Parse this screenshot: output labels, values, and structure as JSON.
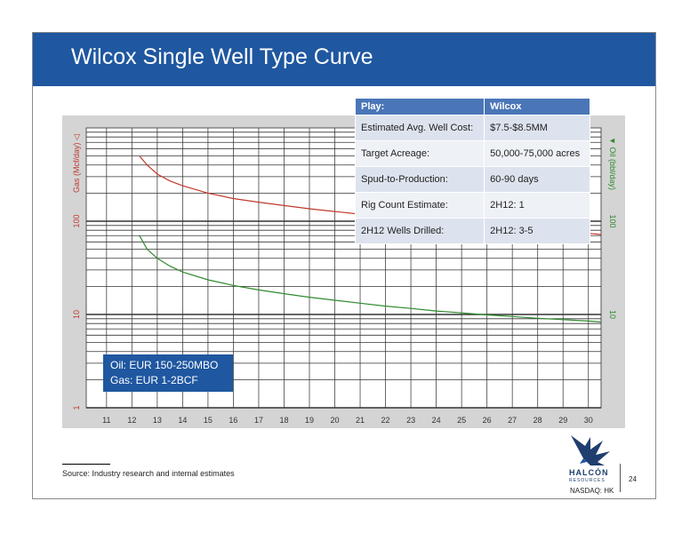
{
  "slide": {
    "title": "Wilcox Single Well Type Curve",
    "source": "Source: Industry research and internal estimates",
    "page_number": "24",
    "ticker": "NASDAQ: HK",
    "company_name": "HALCÓN",
    "company_sub": "RESOURCES",
    "colors": {
      "banner": "#1f57a0",
      "table_header": "#4a76b8",
      "gas_curve": "#c0392b",
      "oil_curve": "#2e8b2e"
    }
  },
  "info_table": {
    "header": [
      "Play:",
      "Wilcox"
    ],
    "rows": [
      [
        "Estimated Avg. Well Cost:",
        "$7.5-$8.5MM"
      ],
      [
        "Target Acreage:",
        "50,000-75,000 acres"
      ],
      [
        "Spud-to-Production:",
        "60-90 days"
      ],
      [
        "Rig Count Estimate:",
        "2H12: 1"
      ],
      [
        "2H12 Wells Drilled:",
        "2H12: 3-5"
      ]
    ]
  },
  "eur_box": [
    "Oil: EUR 150-250MBO",
    "Gas: EUR 1-2BCF"
  ],
  "chart_data": {
    "type": "line",
    "ylabel_left": "Gas (Mcf/day) ◁",
    "ylabel_right": "▼ Oil (bbl/day)",
    "xlim": [
      10.2,
      30.5
    ],
    "ylim": [
      1,
      1000
    ],
    "yscale": "log",
    "grid": true,
    "x_ticks": [
      11,
      12,
      13,
      14,
      15,
      16,
      17,
      18,
      19,
      20,
      21,
      22,
      23,
      24,
      25,
      26,
      27,
      28,
      29,
      30
    ],
    "y_ticks_left": [
      "1",
      "10",
      "100"
    ],
    "y_ticks_right": [
      "10",
      "100"
    ],
    "series": [
      {
        "color": "#c0392b",
        "x": [
          12.3,
          12.6,
          13,
          13.5,
          14,
          15,
          16,
          17,
          18,
          19,
          20,
          21,
          22,
          23,
          24,
          25,
          26,
          27,
          28,
          29,
          30,
          30.5
        ],
        "y": [
          500,
          400,
          320,
          270,
          240,
          200,
          175,
          160,
          147,
          136,
          127,
          119,
          112,
          106,
          100,
          95,
          90,
          86,
          82,
          78,
          74,
          72
        ]
      },
      {
        "color": "#2e8b2e",
        "x": [
          12.3,
          12.6,
          13,
          13.5,
          14,
          15,
          16,
          17,
          18,
          19,
          20,
          21,
          22,
          23,
          24,
          25,
          26,
          27,
          28,
          29,
          30,
          30.5
        ],
        "y": [
          70,
          50,
          40,
          33,
          28.5,
          23.5,
          20.5,
          18.3,
          16.7,
          15.3,
          14.2,
          13.2,
          12.3,
          11.6,
          10.9,
          10.4,
          9.9,
          9.5,
          9.1,
          8.8,
          8.5,
          8.3
        ]
      }
    ]
  }
}
